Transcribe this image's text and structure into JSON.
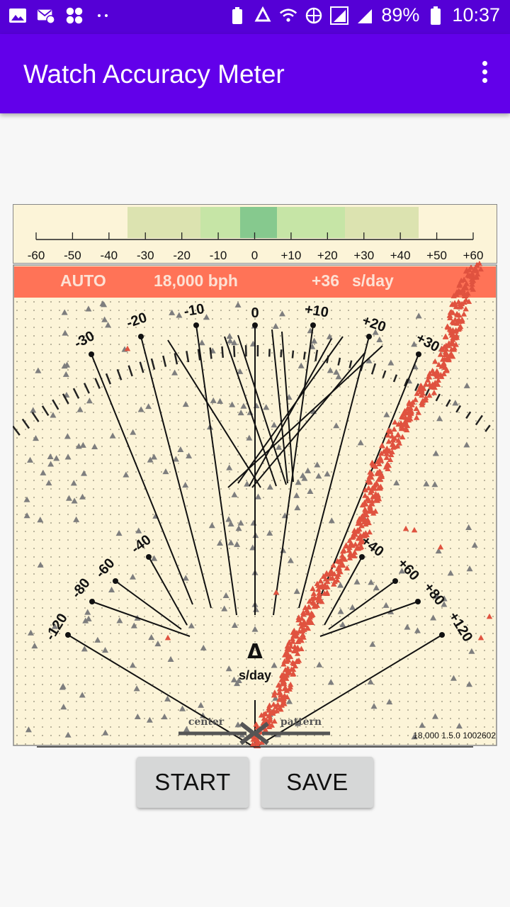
{
  "status_bar": {
    "battery": "89%",
    "time": "10:37",
    "icons": [
      "gallery-icon",
      "mail-icon",
      "apps-icon",
      "dots-icon",
      "battery-saver-icon",
      "recycle-icon",
      "wifi-icon",
      "data-icon",
      "signal-icon",
      "signal2-icon",
      "battery-icon"
    ]
  },
  "app_bar": {
    "title": "Watch Accuracy Meter",
    "menu_icon": "overflow-menu-icon"
  },
  "scale": {
    "ticks": [
      "-60",
      "-50",
      "-40",
      "-30",
      "-20",
      "-10",
      "0",
      "+10",
      "+20",
      "+30",
      "+40",
      "+50",
      "+60"
    ]
  },
  "banner": {
    "mode": "AUTO",
    "bph": "18,000 bph",
    "rate": "+36",
    "unit": "s/day",
    "color": "#ff7357"
  },
  "fan": {
    "upper_labels": [
      "-30",
      "-20",
      "-10",
      "0",
      "+10",
      "+20",
      "+30"
    ],
    "lower_labels": [
      "-120",
      "-80",
      "-60",
      "-40",
      "+40",
      "+60",
      "+80",
      "+120"
    ],
    "delta_symbol": "Δ",
    "delta_unit": "s/day",
    "left_arrow_label": "center",
    "right_arrow_label": "pattern",
    "version": "18,000 1.5.0 1002602"
  },
  "colors": {
    "panel": "#fcf4d8",
    "banner": "#ff7357",
    "trace": "#e0523f",
    "marker": "#7e7e7e",
    "zone_outer": "#dce3b0",
    "zone_mid": "#c6e5a6",
    "zone_inner": "#86c98e"
  },
  "buttons": {
    "start": "START",
    "save": "SAVE"
  }
}
